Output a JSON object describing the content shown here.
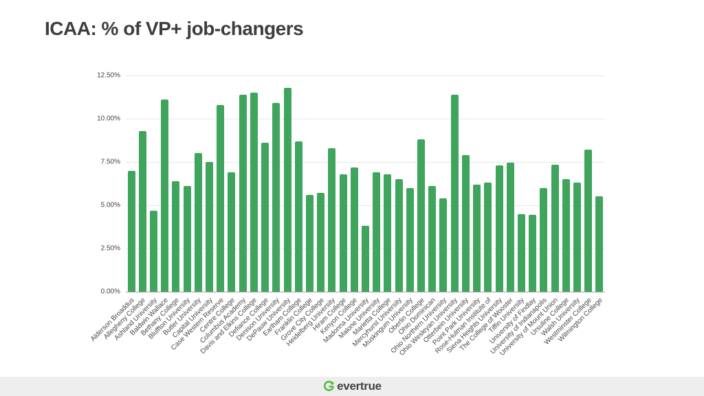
{
  "title": "ICAA: % of VP+ job-changers",
  "footer": {
    "logo_text": "evertrue",
    "logo_icon": "evertrue-circular-arrow-e-icon"
  },
  "colors": {
    "bar_green": "#3fa45c",
    "gridline": "#e7e7e7",
    "axis_baseline": "#9e9e9e",
    "tick_text": "#424242",
    "title_text": "#3d3d3d",
    "footer_background": "#eeeeee",
    "logo_green": "#62bb46",
    "logo_text": "#3f4245"
  },
  "chart_data": {
    "type": "bar",
    "title": "ICAA: % of VP+ job-changers",
    "xlabel": "",
    "ylabel": "",
    "ylim": [
      0,
      12.5
    ],
    "yticks": [
      0,
      2.5,
      5,
      7.5,
      10,
      12.5
    ],
    "ytick_labels": [
      "0.00%",
      "2.50%",
      "5.00%",
      "7.50%",
      "10.00%",
      "12.50%"
    ],
    "grid": "horizontal",
    "legend_position": "none",
    "bar_color": "#3fa45c",
    "categories": [
      "Alderson Broaddus",
      "Allegheny College",
      "Ashland University",
      "Baldwin Wallace",
      "Bethany College",
      "Bluffton University",
      "Butler University",
      "Capital University",
      "Case Western Reserve",
      "Centre College",
      "Columbus Academy",
      "Davis and Elkins College",
      "Defiance College",
      "Denison University",
      "DePauw University",
      "Earlham College",
      "Franklin College",
      "Grove City College",
      "Heidelberg University",
      "Hiram College",
      "Kenyon College",
      "Madonna University",
      "Malone University",
      "Marietta College",
      "Mercyhurst University",
      "Muskingum University",
      "Oberlin College",
      "Ohio Dominican",
      "Ohio Northern University",
      "Ohio Wesleyan University",
      "Otterbein University",
      "Point Park University",
      "Rose-Hulman Institute of",
      "Siena Heights University",
      "The College of Wooster",
      "Tiffin University",
      "University of Findlay",
      "University of Indianapolis",
      "University of Mount Union",
      "Ursuline College",
      "Walsh University",
      "Westminster College",
      "Wilmington College"
    ],
    "values": [
      7.0,
      9.3,
      4.7,
      11.1,
      6.4,
      6.1,
      8.0,
      7.5,
      10.8,
      6.9,
      11.4,
      11.5,
      8.6,
      10.9,
      11.8,
      8.7,
      5.6,
      5.7,
      8.3,
      6.8,
      7.2,
      3.8,
      6.9,
      6.8,
      6.5,
      6.0,
      8.8,
      6.1,
      5.4,
      11.4,
      7.9,
      6.2,
      6.3,
      7.3,
      7.45,
      4.5,
      4.45,
      6.0,
      7.35,
      6.5,
      6.3,
      8.2,
      5.5
    ]
  }
}
